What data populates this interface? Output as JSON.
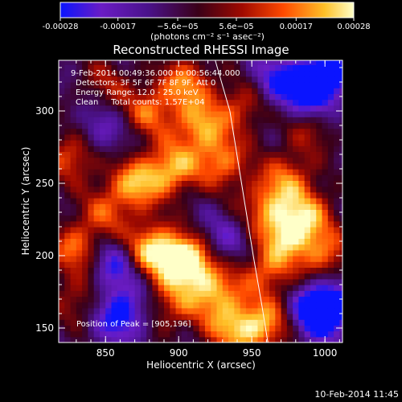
{
  "colorbar": {
    "ticks": [
      {
        "label": "-0.00028",
        "value": -0.00028
      },
      {
        "label": "-0.00017",
        "value": -0.00017
      },
      {
        "label": "−5.6e−05",
        "value": -5.6e-05
      },
      {
        "label": "5.6e−05",
        "value": 5.6e-05
      },
      {
        "label": "0.00017",
        "value": 0.00017
      },
      {
        "label": "0.00028",
        "value": 0.00028
      }
    ],
    "range": [
      -0.00028,
      0.00028
    ],
    "units_label": "(photons cm⁻² s⁻¹ asec⁻²)",
    "colormap": [
      "#0a14ff",
      "#6a1cc4",
      "#4a128a",
      "#3a0018",
      "#a00a00",
      "#ff4a00",
      "#ffc028",
      "#ffffc8"
    ]
  },
  "chart_data": {
    "type": "heatmap",
    "title": "Reconstructed RHESSI Image",
    "xlabel": "Heliocentric X (arcsec)",
    "ylabel": "Heliocentric Y (arcsec)",
    "xlim": [
      818,
      1012
    ],
    "ylim": [
      140,
      335
    ],
    "xticks": [
      850,
      900,
      950,
      1000
    ],
    "yticks": [
      150,
      200,
      250,
      300
    ],
    "annotations": [
      "9-Feb-2014 00:49:36.000 to 00:56:44.000",
      "Detectors: 3F 5F 6F 7F 8F 9F, Att 0",
      "Energy Range: 12.0 - 25.0 keV",
      "Clean     Total counts: 1.57E+04"
    ],
    "peak_label": "Position of Peak = [905,196]",
    "peak": {
      "x": 905,
      "y": 196
    },
    "limb_curve": [
      {
        "x": 925,
        "y": 335
      },
      {
        "x": 935,
        "y": 300
      },
      {
        "x": 943,
        "y": 250
      },
      {
        "x": 951,
        "y": 200
      },
      {
        "x": 957,
        "y": 165
      },
      {
        "x": 961,
        "y": 140
      }
    ],
    "hotspots": [
      {
        "x": 905,
        "y": 196,
        "amp": 1.0
      },
      {
        "x": 880,
        "y": 205,
        "amp": 0.75
      },
      {
        "x": 870,
        "y": 250,
        "amp": 0.6
      },
      {
        "x": 895,
        "y": 260,
        "amp": 0.65
      },
      {
        "x": 915,
        "y": 290,
        "amp": 0.6
      },
      {
        "x": 930,
        "y": 265,
        "amp": 0.55
      },
      {
        "x": 945,
        "y": 305,
        "amp": 0.45
      },
      {
        "x": 905,
        "y": 320,
        "amp": 0.55
      },
      {
        "x": 880,
        "y": 300,
        "amp": 0.5
      },
      {
        "x": 828,
        "y": 270,
        "amp": 0.55
      },
      {
        "x": 830,
        "y": 205,
        "amp": 0.55
      },
      {
        "x": 832,
        "y": 170,
        "amp": 0.35
      },
      {
        "x": 960,
        "y": 235,
        "amp": 0.5
      },
      {
        "x": 975,
        "y": 215,
        "amp": 0.65
      },
      {
        "x": 990,
        "y": 230,
        "amp": 0.45
      },
      {
        "x": 1000,
        "y": 200,
        "amp": 0.5
      },
      {
        "x": 960,
        "y": 190,
        "amp": 0.5
      },
      {
        "x": 925,
        "y": 175,
        "amp": 0.6
      },
      {
        "x": 935,
        "y": 150,
        "amp": 0.5
      },
      {
        "x": 955,
        "y": 150,
        "amp": 0.55
      },
      {
        "x": 975,
        "y": 160,
        "amp": 0.4
      },
      {
        "x": 895,
        "y": 165,
        "amp": 0.4
      },
      {
        "x": 975,
        "y": 255,
        "amp": 0.45
      },
      {
        "x": 990,
        "y": 290,
        "amp": 0.35
      },
      {
        "x": 850,
        "y": 320,
        "amp": 0.3
      },
      {
        "x": 850,
        "y": 230,
        "amp": 0.4
      }
    ],
    "coldspots": [
      {
        "x": 856,
        "y": 195,
        "amp": -0.5
      },
      {
        "x": 860,
        "y": 160,
        "amp": -0.6
      },
      {
        "x": 985,
        "y": 160,
        "amp": -0.55
      },
      {
        "x": 1002,
        "y": 165,
        "amp": -0.8
      },
      {
        "x": 990,
        "y": 310,
        "amp": -0.5
      },
      {
        "x": 965,
        "y": 320,
        "amp": -0.45
      },
      {
        "x": 1000,
        "y": 325,
        "amp": -0.6
      },
      {
        "x": 845,
        "y": 285,
        "amp": -0.35
      },
      {
        "x": 930,
        "y": 210,
        "amp": -0.3
      }
    ]
  },
  "footer_timestamp": "10-Feb-2014 11:45"
}
